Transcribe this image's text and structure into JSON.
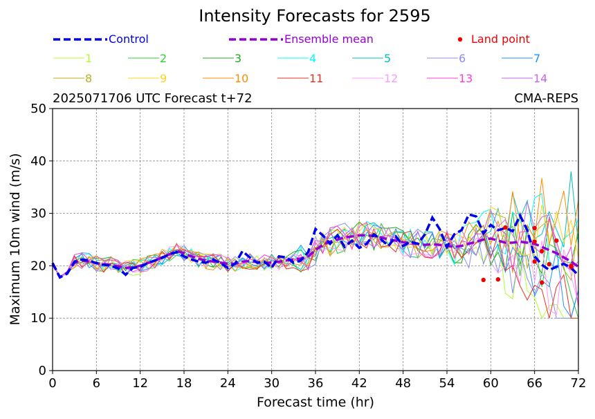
{
  "chart_data": {
    "type": "line",
    "title": "Intensity Forecasts for 2595",
    "subtitle_left": "2025071706 UTC Forecast t+72",
    "subtitle_right": "CMA-REPS",
    "xlabel": "Forecast time (hr)",
    "ylabel": "Maximum 10m wind (m/s)",
    "xlim": [
      0,
      72
    ],
    "ylim": [
      0,
      50
    ],
    "xticks": [
      0,
      6,
      12,
      18,
      24,
      30,
      36,
      42,
      48,
      54,
      60,
      66,
      72
    ],
    "yticks": [
      0,
      10,
      20,
      30,
      40,
      50
    ],
    "grid": true,
    "legend_placement": "top",
    "control": {
      "name": "Control",
      "color": "#0000ee",
      "x": [
        0,
        1,
        2,
        3,
        4,
        5,
        6,
        7,
        8,
        9,
        10,
        11,
        12,
        13,
        14,
        15,
        16,
        17,
        18,
        19,
        20,
        21,
        22,
        23,
        24,
        25,
        26,
        27,
        28,
        29,
        30,
        31,
        32,
        33,
        34,
        35,
        36,
        37,
        38,
        39,
        40,
        41,
        42,
        43,
        44,
        45,
        46,
        47,
        48,
        49,
        50,
        51,
        52,
        53,
        54,
        55,
        56,
        57,
        58,
        59,
        60,
        61,
        62,
        63,
        64,
        65,
        66,
        67,
        68,
        69,
        70,
        71,
        72
      ],
      "y": [
        20.5,
        17.8,
        18.5,
        20.8,
        21.2,
        21.0,
        20.5,
        20.2,
        20.0,
        19.5,
        18.3,
        19.6,
        19.8,
        20.5,
        21.0,
        21.5,
        22.2,
        22.6,
        21.8,
        21.2,
        20.8,
        20.6,
        21.2,
        20.5,
        19.6,
        20.4,
        22.8,
        21.6,
        20.6,
        20.8,
        19.6,
        21.8,
        21.6,
        20.6,
        21.0,
        22.6,
        27.0,
        25.8,
        24.2,
        25.8,
        23.6,
        24.8,
        23.4,
        24.2,
        26.0,
        25.0,
        23.8,
        25.6,
        23.8,
        24.6,
        24.2,
        26.0,
        29.2,
        27.0,
        23.6,
        26.0,
        26.8,
        29.8,
        29.4,
        26.2,
        27.8,
        26.8,
        27.2,
        26.6,
        29.6,
        26.8,
        21.8,
        20.2,
        19.2,
        19.8,
        20.4,
        19.6,
        18.2
      ]
    },
    "ensemble_mean": {
      "name": "Ensemble mean",
      "color": "#9400d3",
      "x": [
        0,
        1,
        2,
        3,
        4,
        5,
        6,
        7,
        8,
        9,
        10,
        11,
        12,
        13,
        14,
        15,
        16,
        17,
        18,
        19,
        20,
        21,
        22,
        23,
        24,
        25,
        26,
        27,
        28,
        29,
        30,
        31,
        32,
        33,
        34,
        35,
        36,
        37,
        38,
        39,
        40,
        41,
        42,
        43,
        44,
        45,
        46,
        47,
        48,
        49,
        50,
        51,
        52,
        53,
        54,
        55,
        56,
        57,
        58,
        59,
        60,
        61,
        62,
        63,
        64,
        65,
        66,
        67,
        68,
        69,
        70,
        71,
        72
      ],
      "y": [
        20.5,
        17.8,
        18.7,
        20.6,
        21.0,
        20.8,
        20.5,
        20.3,
        20.2,
        19.9,
        19.6,
        19.7,
        20.0,
        20.5,
        21.0,
        21.6,
        22.2,
        22.8,
        22.4,
        21.8,
        21.3,
        21.0,
        20.8,
        20.6,
        20.4,
        20.4,
        20.8,
        20.9,
        20.7,
        20.6,
        20.6,
        20.8,
        21.0,
        21.2,
        21.4,
        21.8,
        23.0,
        24.0,
        24.6,
        25.0,
        25.4,
        25.6,
        25.8,
        25.8,
        25.7,
        25.4,
        25.0,
        24.8,
        24.5,
        24.3,
        24.2,
        24.0,
        24.1,
        24.0,
        23.8,
        23.6,
        23.8,
        24.2,
        24.6,
        25.0,
        25.2,
        24.8,
        24.4,
        24.4,
        24.6,
        24.4,
        24.2,
        23.6,
        23.0,
        22.4,
        21.6,
        20.8,
        19.8
      ]
    },
    "members": [
      {
        "name": "1",
        "color": "#adff2f"
      },
      {
        "name": "2",
        "color": "#32cd32"
      },
      {
        "name": "3",
        "color": "#1faa1f"
      },
      {
        "name": "4",
        "color": "#00ffff"
      },
      {
        "name": "5",
        "color": "#00bfbf"
      },
      {
        "name": "6",
        "color": "#8c8cf0"
      },
      {
        "name": "7",
        "color": "#1e90ff"
      },
      {
        "name": "8",
        "color": "#bcb01e"
      },
      {
        "name": "9",
        "color": "#ffd21e"
      },
      {
        "name": "10",
        "color": "#ff8c00"
      },
      {
        "name": "11",
        "color": "#e8301e"
      },
      {
        "name": "12",
        "color": "#ff99ff"
      },
      {
        "name": "13",
        "color": "#ff3cd8"
      },
      {
        "name": "14",
        "color": "#c666f0"
      }
    ],
    "land_points": {
      "name": "Land point",
      "color": "#ee0000",
      "points": [
        [
          59,
          17.3
        ],
        [
          61,
          17.4
        ],
        [
          62,
          27.3
        ],
        [
          66,
          27.2
        ],
        [
          66,
          20.8
        ],
        [
          66,
          24.6
        ],
        [
          67,
          22.8
        ],
        [
          67,
          16.8
        ],
        [
          68,
          20.3
        ],
        [
          69,
          24.8
        ],
        [
          71,
          20.0
        ],
        [
          71,
          19.8
        ]
      ]
    }
  }
}
